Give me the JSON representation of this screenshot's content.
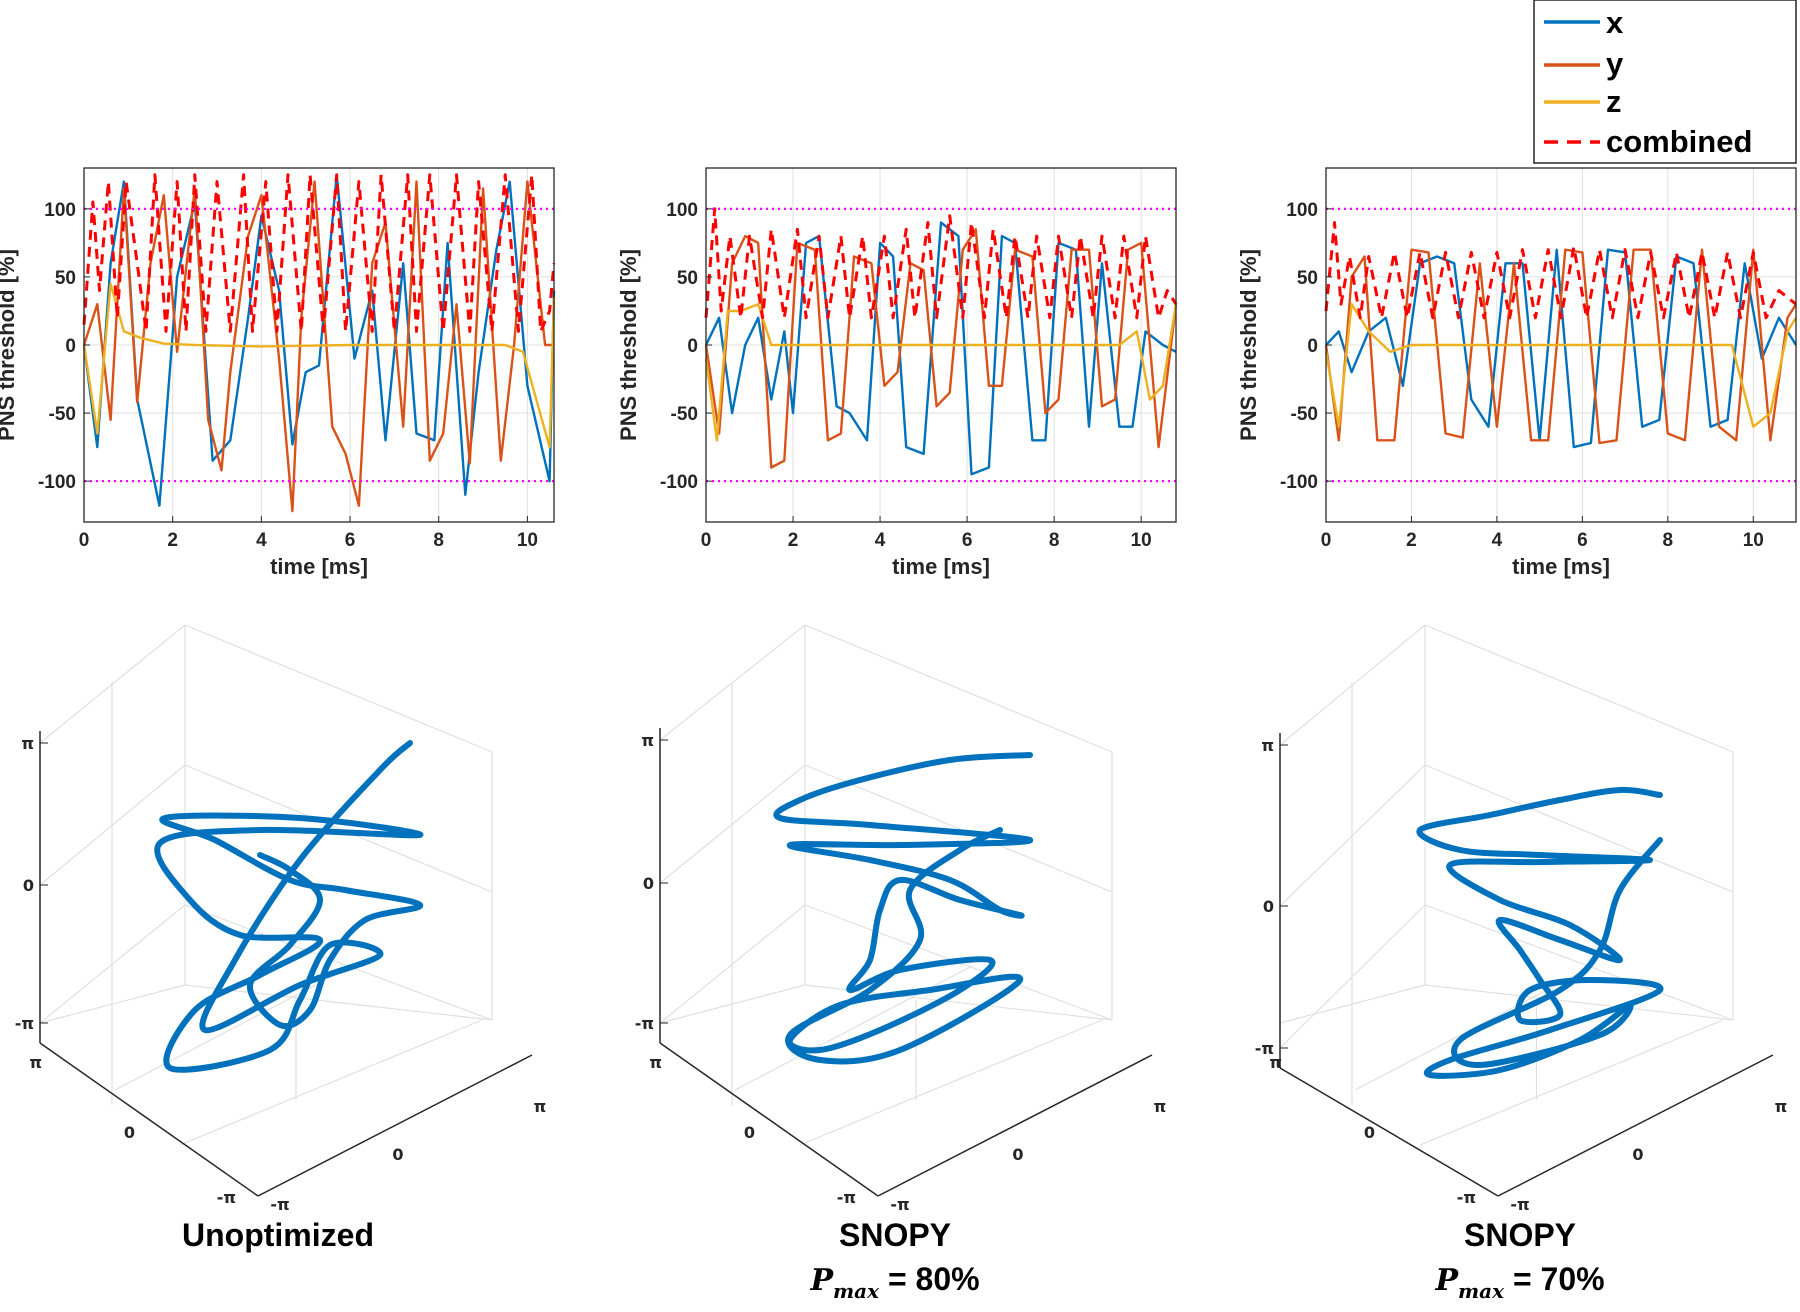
{
  "legend": {
    "entries": [
      {
        "label": "x",
        "color": "#0072BD",
        "dash": false
      },
      {
        "label": "y",
        "color": "#D95319",
        "dash": false
      },
      {
        "label": "z",
        "color": "#EDB120",
        "dash": false
      },
      {
        "label": "combined",
        "color": "#FF0000",
        "dash": true
      }
    ],
    "placement": "top-right"
  },
  "captions": [
    {
      "line1": "Unoptimized",
      "line2": ""
    },
    {
      "line1": "SNOPY",
      "line2_sym": "P",
      "line2_sub": "max",
      "line2_val": " = 80%"
    },
    {
      "line1": "SNOPY",
      "line2_sym": "P",
      "line2_sub": "max",
      "line2_val": " = 70%"
    }
  ],
  "colors": {
    "threshold": "#FF00FF",
    "traj": "#0072BD",
    "grid": "#E0E0E0",
    "axis": "#262626"
  },
  "chart_data": [
    {
      "type": "line",
      "panel": "unoptimized",
      "xlabel": "time [ms]",
      "ylabel": "PNS threshold [%]",
      "xlim": [
        0,
        10.6
      ],
      "ylim": [
        -130,
        130
      ],
      "xticks": [
        "0",
        "2",
        "4",
        "6",
        "8",
        "10"
      ],
      "yticks": [
        "100",
        "50",
        "0",
        "-50",
        "-100"
      ],
      "threshold_lines": [
        100,
        -100
      ],
      "series": [
        {
          "name": "x",
          "x": [
            0,
            0.3,
            0.6,
            0.9,
            1.2,
            1.7,
            2.1,
            2.5,
            2.9,
            3.3,
            3.7,
            4.0,
            4.4,
            4.7,
            5.0,
            5.3,
            5.7,
            6.1,
            6.5,
            6.8,
            7.2,
            7.5,
            7.9,
            8.2,
            8.6,
            8.9,
            9.3,
            9.6,
            10.0,
            10.5,
            10.6
          ],
          "y": [
            0,
            -75,
            60,
            120,
            -40,
            -118,
            50,
            105,
            -85,
            -70,
            20,
            95,
            40,
            -73,
            -20,
            -15,
            125,
            -10,
            40,
            -70,
            60,
            -65,
            -70,
            75,
            -110,
            -20,
            70,
            120,
            -30,
            -100,
            40
          ]
        },
        {
          "name": "y",
          "x": [
            0,
            0.3,
            0.6,
            0.9,
            1.2,
            1.5,
            1.8,
            2.1,
            2.5,
            2.8,
            3.1,
            3.3,
            3.7,
            4.0,
            4.4,
            4.7,
            4.9,
            5.2,
            5.6,
            5.9,
            6.2,
            6.5,
            6.8,
            7.2,
            7.5,
            7.8,
            8.1,
            8.4,
            8.7,
            9.0,
            9.4,
            9.7,
            10.0,
            10.4,
            10.6
          ],
          "y": [
            0,
            30,
            -55,
            115,
            -42,
            60,
            110,
            -5,
            115,
            -55,
            -92,
            -20,
            80,
            110,
            -10,
            -122,
            20,
            120,
            -60,
            -80,
            -118,
            60,
            90,
            -60,
            120,
            -85,
            -65,
            30,
            -87,
            115,
            -85,
            0,
            120,
            0,
            0
          ]
        },
        {
          "name": "z",
          "x": [
            0,
            0.3,
            0.6,
            0.9,
            1.3,
            1.8,
            2.5,
            4,
            6,
            8,
            9.5,
            9.9,
            10.2,
            10.5,
            10.6
          ],
          "y": [
            0,
            -65,
            45,
            10,
            5,
            1,
            0,
            -1,
            0,
            0,
            0,
            -5,
            -40,
            -75,
            35
          ]
        },
        {
          "name": "combined",
          "x": [
            0,
            0.2,
            0.35,
            0.55,
            0.75,
            0.95,
            1.2,
            1.4,
            1.6,
            1.85,
            2.1,
            2.3,
            2.5,
            2.75,
            3.0,
            3.3,
            3.6,
            3.8,
            4.1,
            4.35,
            4.6,
            4.9,
            5.1,
            5.4,
            5.7,
            5.9,
            6.2,
            6.5,
            6.7,
            7.0,
            7.3,
            7.5,
            7.8,
            8.1,
            8.4,
            8.7,
            8.9,
            9.2,
            9.5,
            9.8,
            10.1,
            10.3,
            10.5,
            10.6
          ],
          "y": [
            15,
            105,
            40,
            120,
            20,
            120,
            60,
            10,
            125,
            10,
            120,
            10,
            125,
            10,
            120,
            10,
            125,
            10,
            120,
            10,
            125,
            10,
            125,
            10,
            125,
            10,
            120,
            10,
            125,
            10,
            125,
            10,
            125,
            10,
            125,
            10,
            120,
            10,
            125,
            10,
            125,
            10,
            25,
            60
          ]
        }
      ]
    },
    {
      "type": "line",
      "panel": "snopy-80",
      "xlabel": "time [ms]",
      "ylabel": "PNS threshold [%]",
      "xlim": [
        0,
        10.8
      ],
      "ylim": [
        -130,
        130
      ],
      "xticks": [
        "0",
        "2",
        "4",
        "6",
        "8",
        "10"
      ],
      "yticks": [
        "100",
        "50",
        "0",
        "-50",
        "-100"
      ],
      "threshold_lines": [
        100,
        -100
      ],
      "series": [
        {
          "name": "x",
          "x": [
            0,
            0.3,
            0.6,
            0.9,
            1.2,
            1.5,
            1.8,
            2.0,
            2.3,
            2.6,
            3.0,
            3.3,
            3.7,
            4.0,
            4.3,
            4.6,
            5.0,
            5.4,
            5.8,
            6.1,
            6.5,
            6.8,
            7.1,
            7.5,
            7.8,
            8.1,
            8.5,
            8.8,
            9.1,
            9.5,
            9.8,
            10.1,
            10.5,
            10.8
          ],
          "y": [
            0,
            20,
            -50,
            0,
            20,
            -40,
            10,
            -50,
            75,
            80,
            -45,
            -50,
            -70,
            75,
            65,
            -75,
            -80,
            90,
            80,
            -95,
            -90,
            80,
            75,
            -70,
            -70,
            75,
            70,
            -60,
            60,
            -60,
            -60,
            10,
            0,
            -5
          ]
        },
        {
          "name": "y",
          "x": [
            0,
            0.3,
            0.6,
            0.9,
            1.2,
            1.5,
            1.8,
            2.1,
            2.5,
            2.8,
            3.1,
            3.4,
            3.8,
            4.1,
            4.4,
            4.7,
            5.0,
            5.3,
            5.6,
            5.9,
            6.2,
            6.5,
            6.8,
            7.1,
            7.5,
            7.8,
            8.1,
            8.4,
            8.8,
            9.1,
            9.4,
            9.7,
            10.0,
            10.4,
            10.8
          ],
          "y": [
            0,
            -65,
            60,
            80,
            75,
            -90,
            -85,
            75,
            70,
            -70,
            -65,
            65,
            60,
            -30,
            -20,
            60,
            55,
            -45,
            -35,
            70,
            85,
            -30,
            -30,
            70,
            65,
            -50,
            -40,
            70,
            70,
            -45,
            -40,
            70,
            75,
            -75,
            30
          ]
        },
        {
          "name": "z",
          "x": [
            0,
            0.25,
            0.5,
            0.8,
            1.2,
            1.5,
            2,
            4,
            6,
            8,
            9.5,
            9.9,
            10.2,
            10.5,
            10.8
          ],
          "y": [
            -10,
            -70,
            25,
            25,
            30,
            0,
            0,
            0,
            0,
            0,
            0,
            10,
            -40,
            -30,
            30
          ]
        },
        {
          "name": "combined",
          "x": [
            0,
            0.2,
            0.35,
            0.55,
            0.8,
            1.0,
            1.3,
            1.5,
            1.8,
            2.1,
            2.3,
            2.6,
            2.8,
            3.1,
            3.3,
            3.6,
            3.8,
            4.1,
            4.3,
            4.6,
            4.8,
            5.1,
            5.3,
            5.6,
            5.9,
            6.1,
            6.4,
            6.6,
            6.9,
            7.1,
            7.4,
            7.6,
            7.9,
            8.1,
            8.4,
            8.6,
            8.9,
            9.1,
            9.4,
            9.6,
            9.9,
            10.1,
            10.4,
            10.6,
            10.8
          ],
          "y": [
            20,
            100,
            25,
            80,
            20,
            80,
            20,
            85,
            20,
            85,
            20,
            80,
            20,
            80,
            20,
            80,
            20,
            80,
            20,
            85,
            20,
            90,
            20,
            95,
            20,
            90,
            20,
            85,
            20,
            80,
            20,
            80,
            20,
            80,
            20,
            80,
            20,
            80,
            20,
            80,
            20,
            80,
            20,
            40,
            30
          ]
        }
      ]
    },
    {
      "type": "line",
      "panel": "snopy-70",
      "xlabel": "time [ms]",
      "ylabel": "PNS threshold [%]",
      "xlim": [
        0,
        11.0
      ],
      "ylim": [
        -130,
        130
      ],
      "xticks": [
        "0",
        "2",
        "4",
        "6",
        "8",
        "10"
      ],
      "yticks": [
        "100",
        "50",
        "0",
        "-50",
        "-100"
      ],
      "threshold_lines": [
        100,
        -100
      ],
      "series": [
        {
          "name": "x",
          "x": [
            0,
            0.3,
            0.6,
            1.0,
            1.4,
            1.8,
            2.2,
            2.6,
            3.0,
            3.4,
            3.8,
            4.2,
            4.6,
            5.0,
            5.4,
            5.8,
            6.2,
            6.6,
            7.0,
            7.4,
            7.8,
            8.2,
            8.6,
            9.0,
            9.4,
            9.8,
            10.2,
            10.6,
            11.0
          ],
          "y": [
            0,
            10,
            -20,
            10,
            20,
            -30,
            60,
            65,
            60,
            -40,
            -60,
            60,
            60,
            -70,
            70,
            -75,
            -72,
            70,
            68,
            -60,
            -55,
            65,
            60,
            -60,
            -55,
            60,
            -10,
            20,
            0
          ]
        },
        {
          "name": "y",
          "x": [
            0,
            0.3,
            0.6,
            0.9,
            1.2,
            1.6,
            2.0,
            2.4,
            2.8,
            3.2,
            3.6,
            4.0,
            4.4,
            4.8,
            5.2,
            5.6,
            6.0,
            6.4,
            6.8,
            7.2,
            7.6,
            8.0,
            8.4,
            8.8,
            9.2,
            9.6,
            10.0,
            10.4,
            10.8,
            11.0
          ],
          "y": [
            0,
            -70,
            50,
            65,
            -70,
            -70,
            70,
            68,
            -65,
            -68,
            60,
            -60,
            60,
            -70,
            -70,
            70,
            68,
            -72,
            -70,
            70,
            70,
            -65,
            -70,
            70,
            -60,
            -70,
            70,
            -70,
            20,
            30
          ]
        },
        {
          "name": "z",
          "x": [
            0,
            0.3,
            0.6,
            1.0,
            1.5,
            2,
            2.5,
            4,
            6,
            8,
            9.5,
            10.0,
            10.4,
            10.8,
            11.0
          ],
          "y": [
            -5,
            -60,
            30,
            10,
            -5,
            0,
            0,
            0,
            0,
            0,
            0,
            -60,
            -50,
            10,
            20
          ]
        },
        {
          "name": "combined",
          "x": [
            0,
            0.2,
            0.35,
            0.55,
            0.8,
            1.0,
            1.3,
            1.6,
            1.9,
            2.2,
            2.5,
            2.8,
            3.1,
            3.4,
            3.7,
            4.0,
            4.3,
            4.6,
            4.9,
            5.2,
            5.5,
            5.8,
            6.1,
            6.4,
            6.7,
            7.0,
            7.3,
            7.6,
            7.9,
            8.2,
            8.5,
            8.8,
            9.1,
            9.4,
            9.7,
            10.0,
            10.3,
            10.6,
            11.0
          ],
          "y": [
            25,
            90,
            30,
            65,
            20,
            65,
            20,
            68,
            20,
            68,
            20,
            68,
            20,
            68,
            20,
            68,
            20,
            70,
            20,
            70,
            20,
            72,
            20,
            70,
            20,
            70,
            20,
            68,
            20,
            68,
            20,
            68,
            20,
            68,
            20,
            68,
            20,
            40,
            30
          ]
        }
      ]
    }
  ],
  "traj_ticks": {
    "pi": "π",
    "zero": "0",
    "negpi": "-π"
  }
}
